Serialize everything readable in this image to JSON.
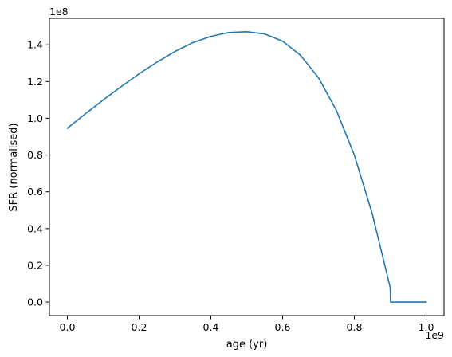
{
  "chart_data": {
    "type": "line",
    "title": "",
    "xlabel": "age (yr)",
    "ylabel": "SFR (normalised)",
    "x_offset_text": "1e9",
    "y_offset_text": "1e8",
    "xlim": [
      -0.05,
      1.05
    ],
    "ylim": [
      -0.0735,
      1.544
    ],
    "x_ticks": [
      0.0,
      0.2,
      0.4,
      0.6,
      0.8,
      1.0
    ],
    "x_tick_labels": [
      "0.0",
      "0.2",
      "0.4",
      "0.6",
      "0.8",
      "1.0"
    ],
    "y_ticks": [
      0.0,
      0.2,
      0.4,
      0.6,
      0.8,
      1.0,
      1.2,
      1.4
    ],
    "y_tick_labels": [
      "0.0",
      "0.2",
      "0.4",
      "0.6",
      "0.8",
      "1.0",
      "1.2",
      "1.4"
    ],
    "grid": false,
    "series": [
      {
        "name": "",
        "color": "#1f77b4",
        "x": [
          0.0,
          0.05,
          0.1,
          0.15,
          0.2,
          0.25,
          0.3,
          0.35,
          0.4,
          0.45,
          0.5,
          0.55,
          0.6,
          0.65,
          0.7,
          0.75,
          0.8,
          0.85,
          0.9,
          0.901,
          0.95,
          1.0
        ],
        "y": [
          0.946,
          1.024,
          1.1,
          1.172,
          1.242,
          1.306,
          1.364,
          1.412,
          1.446,
          1.467,
          1.471,
          1.459,
          1.42,
          1.343,
          1.221,
          1.043,
          0.8,
          0.48,
          0.079,
          0.0,
          0.0,
          0.0
        ]
      }
    ]
  }
}
